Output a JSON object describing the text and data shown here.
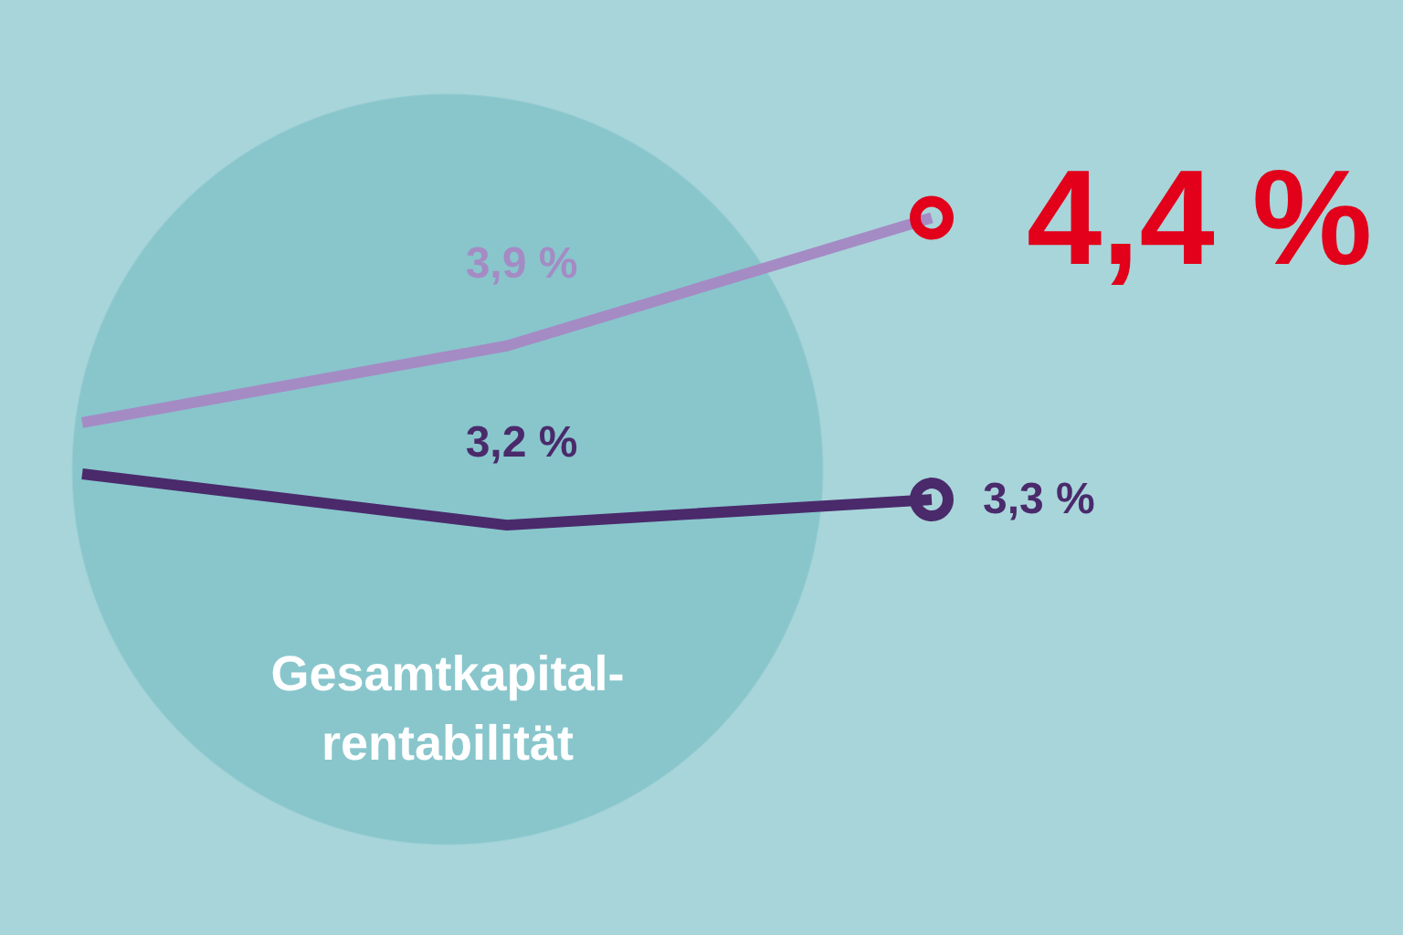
{
  "chart_data": {
    "type": "line",
    "title": "Gesamtkapital-rentabilität",
    "categories": [
      null,
      null,
      null
    ],
    "series": [
      {
        "color": "#a58bc4",
        "colors": [
          null,
          null,
          "#e2001a"
        ],
        "values": [
          3.6,
          3.9,
          4.4
        ],
        "value_labels": [
          null,
          "3,9 %",
          "4,4 %"
        ]
      },
      {
        "color": "#4a2a6b",
        "values": [
          3.4,
          3.2,
          3.3
        ],
        "value_labels": [
          null,
          "3,2 %",
          "3,3 %"
        ]
      }
    ],
    "line_style": "solid",
    "grid": false,
    "tick_labels": false
  }
}
